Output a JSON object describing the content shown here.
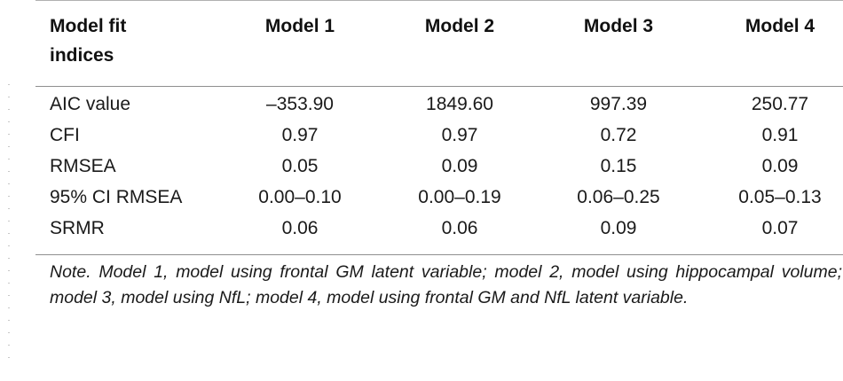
{
  "table": {
    "header": {
      "label": "Model fit indices",
      "columns": [
        "Model 1",
        "Model 2",
        "Model 3",
        "Model 4"
      ]
    },
    "rows": [
      {
        "label": "AIC value",
        "values": [
          "–353.90",
          "1849.60",
          "997.39",
          "250.77"
        ]
      },
      {
        "label": "CFI",
        "values": [
          "0.97",
          "0.97",
          "0.72",
          "0.91"
        ]
      },
      {
        "label": "RMSEA",
        "values": [
          "0.05",
          "0.09",
          "0.15",
          "0.09"
        ]
      },
      {
        "label": "95% CI RMSEA",
        "values": [
          "0.00–0.10",
          "0.00–0.19",
          "0.06–0.25",
          "0.05–0.13"
        ]
      },
      {
        "label": "SRMR",
        "values": [
          "0.06",
          "0.06",
          "0.09",
          "0.07"
        ]
      }
    ],
    "note": "Note. Model 1, model using frontal GM latent variable; model 2, model using hippocampal volume; model 3, model using NfL; model 4, model using frontal GM and NfL latent variable."
  }
}
